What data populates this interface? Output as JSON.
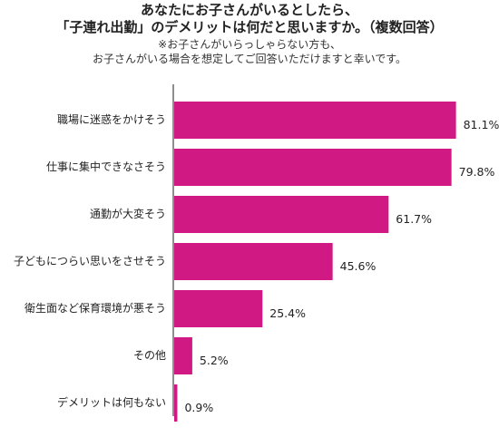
{
  "header": {
    "title_line1": "あなたにお子さんがいるとしたら、",
    "title_line2": "「子連れ出勤」のデメリットは何だと思いますか。（複数回答）",
    "note_line1": "※お子さんがいらっしゃらない方も、",
    "note_line2": "お子さんがいる場合を想定してご回答いただけますと幸いです。"
  },
  "chart_data": {
    "type": "bar",
    "orientation": "horizontal",
    "title": "あなたにお子さんがいるとしたら、「子連れ出勤」のデメリットは何だと思いますか。（複数回答）",
    "categories": [
      "職場に迷惑をかけそう",
      "仕事に集中できなさそう",
      "通勤が大変そう",
      "子どもにつらい思いをさせそう",
      "衛生面など保育環境が悪そう",
      "その他",
      "デメリットは何もない"
    ],
    "values": [
      81.1,
      79.8,
      61.7,
      45.6,
      25.4,
      5.2,
      0.9
    ],
    "value_labels": [
      "81.1%",
      "79.8%",
      "61.7%",
      "45.6%",
      "25.4%",
      "5.2%",
      "0.9%"
    ],
    "unit": "%",
    "xlim": [
      0,
      100
    ],
    "bar_color": "#d01983",
    "grid": false,
    "legend": "none"
  }
}
